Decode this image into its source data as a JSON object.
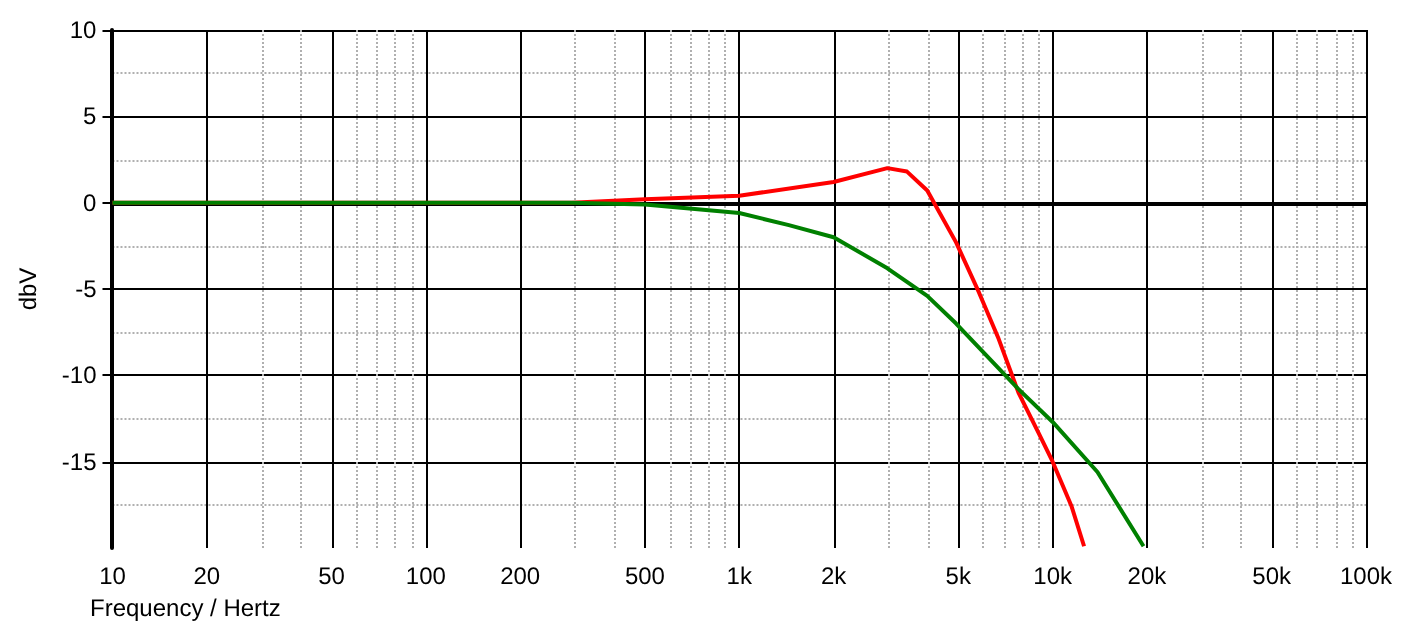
{
  "chart_data": {
    "type": "line",
    "xlabel": "Frequency / Hertz",
    "ylabel": "dbV",
    "log": "x",
    "grid": true,
    "marker": "none",
    "line_style": "solid",
    "xlim": [
      10,
      100000
    ],
    "ylim": [
      -20,
      10
    ],
    "xticks": [
      10,
      20,
      50,
      100,
      200,
      500,
      {
        "value": 1000,
        "label": "1k"
      },
      {
        "value": 2000,
        "label": "2k"
      },
      {
        "value": 5000,
        "label": "5k"
      },
      {
        "value": 10000,
        "label": "10k"
      },
      {
        "value": 20000,
        "label": "20k"
      },
      {
        "value": 50000,
        "label": "50k"
      },
      {
        "value": 100000,
        "label": "100k"
      }
    ],
    "yticks": [
      -15,
      -10,
      -5,
      0,
      5,
      10
    ],
    "series": [
      {
        "color": "#ff0000",
        "x": [
          10,
          292,
          500,
          1000,
          2000,
          2970,
          3430,
          3980,
          4920,
          5820,
          6730,
          7780,
          9000,
          10000,
          11500,
          12600
        ],
        "values": [
          0,
          0,
          0.2,
          0.4,
          1.2,
          2,
          1.8,
          0.7,
          -2.3,
          -5.2,
          -7.9,
          -11,
          -13.3,
          -15,
          -17.6,
          -19.9
        ]
      },
      {
        "color": "#008000",
        "x": [
          10,
          292,
          500,
          1000,
          1440,
          2000,
          2970,
          3980,
          4920,
          7780,
          10000,
          13900,
          19500
        ],
        "values": [
          0,
          0,
          -0.1,
          -0.6,
          -1.3,
          -2,
          -3.8,
          -5.4,
          -7,
          -10.8,
          -12.7,
          -15.6,
          -19.9
        ]
      }
    ]
  }
}
